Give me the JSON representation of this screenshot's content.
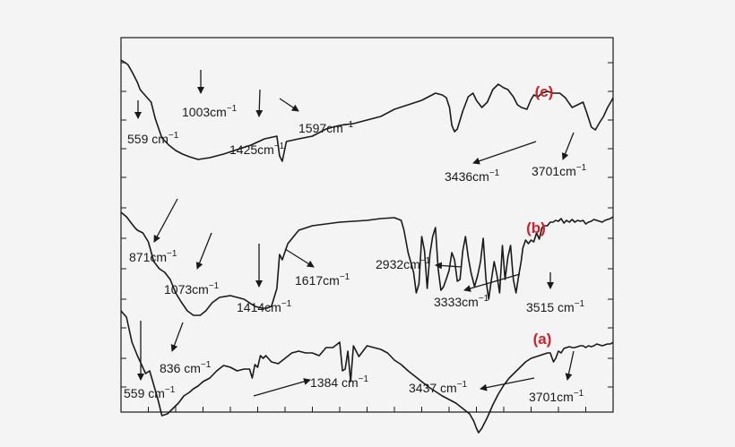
{
  "chart_data": {
    "type": "line",
    "title": "",
    "xlabel": "",
    "ylabel": "",
    "grid": false,
    "x_unit": "cm−1",
    "x_range": [
      400,
      4000
    ],
    "colors": {
      "curve": "#1a1a1a",
      "label": "#d0202a",
      "frame": "#1a1a1a",
      "background": "#f4f4f4"
    },
    "series": [
      {
        "name": "(c)",
        "x": [
          4000,
          3950,
          3920,
          3900,
          3880,
          3860,
          3820,
          3780,
          3750,
          3701,
          3650,
          3600,
          3550,
          3500,
          3436,
          3350,
          3250,
          3150,
          3050,
          2950,
          2860,
          2840,
          2820,
          2790,
          2700,
          2600,
          2500,
          2400,
          2300,
          2200,
          2100,
          2000,
          1900,
          1800,
          1700,
          1650,
          1620,
          1597,
          1580,
          1560,
          1540,
          1500,
          1460,
          1425,
          1400,
          1360,
          1320,
          1280,
          1240,
          1200,
          1170,
          1130,
          1100,
          1070,
          1030,
          1003,
          980,
          950,
          920,
          880,
          840,
          790,
          750,
          700,
          660,
          620,
          590,
          559,
          530,
          500,
          470,
          440,
          410,
          400
        ],
        "y": [
          25,
          30,
          38,
          44,
          50,
          58,
          65,
          72,
          90,
          112,
          120,
          126,
          130,
          133,
          136,
          134,
          130,
          125,
          120,
          113,
          110,
          132,
          138,
          116,
          113,
          110,
          102,
          98,
          96,
          92,
          88,
          80,
          75,
          70,
          62,
          64,
          67,
          78,
          98,
          105,
          102,
          82,
          66,
          62,
          70,
          78,
          72,
          58,
          52,
          56,
          58,
          66,
          75,
          78,
          80,
          70,
          64,
          66,
          62,
          60,
          62,
          62,
          67,
          78,
          75,
          72,
          85,
          100,
          103,
          95,
          88,
          78,
          70,
          67
        ]
      },
      {
        "name": "(b)",
        "x": [
          4000,
          3960,
          3920,
          3900,
          3880,
          3840,
          3800,
          3760,
          3720,
          3680,
          3640,
          3600,
          3560,
          3515,
          3470,
          3420,
          3380,
          3333,
          3280,
          3200,
          3100,
          3020,
          2970,
          2932,
          2900,
          2860,
          2840,
          2820,
          2780,
          2700,
          2600,
          2500,
          2400,
          2300,
          2200,
          2100,
          2000,
          1950,
          1930,
          1900,
          1860,
          1840,
          1820,
          1800,
          1780,
          1760,
          1740,
          1720,
          1700,
          1680,
          1660,
          1640,
          1617,
          1600,
          1580,
          1560,
          1540,
          1520,
          1500,
          1480,
          1460,
          1440,
          1414,
          1390,
          1370,
          1350,
          1330,
          1310,
          1290,
          1270,
          1250,
          1230,
          1210,
          1190,
          1170,
          1150,
          1130,
          1110,
          1090,
          1073,
          1060,
          1040,
          1020,
          1000,
          980,
          960,
          940,
          920,
          900,
          880,
          871,
          860,
          840,
          820,
          800,
          780,
          760,
          740,
          720,
          700,
          680,
          660,
          640,
          620,
          600,
          580,
          560,
          540,
          520,
          500,
          480,
          460,
          440,
          420,
          400
        ],
        "y": [
          195,
          200,
          208,
          212,
          215,
          218,
          228,
          250,
          258,
          262,
          270,
          285,
          295,
          305,
          310,
          310,
          305,
          296,
          290,
          288,
          292,
          300,
          302,
          302,
          300,
          280,
          242,
          248,
          230,
          215,
          210,
          208,
          206,
          205,
          204,
          202,
          201,
          204,
          215,
          240,
          262,
          285,
          275,
          222,
          238,
          280,
          242,
          222,
          212,
          258,
          282,
          278,
          268,
          260,
          240,
          248,
          272,
          270,
          238,
          222,
          245,
          262,
          278,
          265,
          250,
          224,
          270,
          292,
          270,
          250,
          265,
          285,
          232,
          270,
          245,
          232,
          270,
          285,
          265,
          250,
          235,
          226,
          230,
          226,
          228,
          218,
          225,
          212,
          210,
          210,
          208,
          206,
          206,
          204,
          205,
          202,
          207,
          204,
          206,
          203,
          206,
          204,
          205,
          204,
          208,
          206,
          205,
          203,
          204,
          205,
          206,
          204,
          203,
          202,
          200
        ]
      },
      {
        "name": "(a)",
        "x": [
          4000,
          3960,
          3920,
          3880,
          3850,
          3820,
          3790,
          3760,
          3730,
          3701,
          3660,
          3620,
          3580,
          3540,
          3500,
          3470,
          3437,
          3400,
          3350,
          3300,
          3250,
          3200,
          3150,
          3100,
          3060,
          3040,
          3020,
          3000,
          2980,
          2960,
          2940,
          2900,
          2850,
          2800,
          2750,
          2700,
          2650,
          2600,
          2550,
          2500,
          2450,
          2400,
          2380,
          2360,
          2340,
          2320,
          2300,
          2260,
          2200,
          2150,
          2100,
          2050,
          2000,
          1950,
          1900,
          1850,
          1800,
          1750,
          1700,
          1650,
          1600,
          1550,
          1500,
          1450,
          1420,
          1400,
          1384,
          1360,
          1320,
          1280,
          1240,
          1200,
          1160,
          1120,
          1080,
          1040,
          1000,
          960,
          920,
          880,
          860,
          836,
          820,
          800,
          780,
          760,
          740,
          720,
          700,
          680,
          660,
          640,
          620,
          600,
          580,
          559,
          540,
          520,
          500,
          480,
          460,
          440,
          420,
          400
        ],
        "y": [
          305,
          312,
          340,
          355,
          365,
          375,
          372,
          388,
          404,
          422,
          420,
          414,
          408,
          400,
          396,
          392,
          389,
          384,
          380,
          372,
          366,
          368,
          372,
          370,
          370,
          380,
          365,
          368,
          355,
          358,
          355,
          362,
          364,
          358,
          352,
          350,
          352,
          352,
          355,
          346,
          346,
          340,
          372,
          370,
          350,
          384,
          344,
          356,
          344,
          346,
          348,
          352,
          360,
          365,
          372,
          378,
          384,
          390,
          395,
          400,
          404,
          408,
          414,
          420,
          428,
          436,
          441,
          436,
          424,
          410,
          398,
          388,
          380,
          374,
          368,
          362,
          358,
          356,
          354,
          352,
          352,
          362,
          358,
          350,
          352,
          347,
          346,
          345,
          346,
          346,
          345,
          344,
          344,
          346,
          344,
          345,
          344,
          342,
          343,
          344,
          343,
          342,
          342,
          340
        ]
      }
    ],
    "x_ticks": [
      4000,
      3800,
      3600,
      3400,
      3200,
      3000,
      2800,
      2600,
      2400,
      2200,
      2000,
      1800,
      1600,
      1400,
      1200,
      1000,
      800,
      600,
      400
    ],
    "labels": [
      {
        "name": "(c)",
        "text": "(c)"
      },
      {
        "name": "(b)",
        "text": "(b)"
      },
      {
        "name": "(a)",
        "text": "(a)"
      }
    ],
    "annotations": [
      {
        "id": "c1",
        "series": "(c)",
        "peak": 559,
        "text": "559 cm",
        "sup": "−1"
      },
      {
        "id": "c2",
        "series": "(c)",
        "peak": 1003,
        "text": "1003cm",
        "sup": "−1"
      },
      {
        "id": "c3",
        "series": "(c)",
        "peak": 1425,
        "text": "1425cm",
        "sup": "−1"
      },
      {
        "id": "c4",
        "series": "(c)",
        "peak": 1597,
        "text": "1597cm",
        "sup": "−1"
      },
      {
        "id": "c5",
        "series": "(c)",
        "peak": 3436,
        "text": "3436cm",
        "sup": "−1"
      },
      {
        "id": "c6",
        "series": "(c)",
        "peak": 3701,
        "text": "3701cm",
        "sup": "−1"
      },
      {
        "id": "b1",
        "series": "(b)",
        "peak": 871,
        "text": "871cm",
        "sup": "−1"
      },
      {
        "id": "b2",
        "series": "(b)",
        "peak": 1073,
        "text": "1073cm",
        "sup": "−1"
      },
      {
        "id": "b3",
        "series": "(b)",
        "peak": 1414,
        "text": "1414cm",
        "sup": "−1"
      },
      {
        "id": "b4",
        "series": "(b)",
        "peak": 1617,
        "text": "1617cm",
        "sup": "−1"
      },
      {
        "id": "b5",
        "series": "(b)",
        "peak": 2932,
        "text": "2932cm",
        "sup": "−1"
      },
      {
        "id": "b6",
        "series": "(b)",
        "peak": 3333,
        "text": "3333cm",
        "sup": "−1"
      },
      {
        "id": "b7",
        "series": "(b)",
        "peak": 3515,
        "text": "3515 cm",
        "sup": "−1"
      },
      {
        "id": "a1",
        "series": "(a)",
        "peak": 559,
        "text": "559 cm",
        "sup": "−1"
      },
      {
        "id": "a2",
        "series": "(a)",
        "peak": 836,
        "text": "836 cm",
        "sup": "−1"
      },
      {
        "id": "a3",
        "series": "(a)",
        "peak": 1384,
        "text": "1384 cm",
        "sup": "−1"
      },
      {
        "id": "a4",
        "series": "(a)",
        "peak": 3437,
        "text": "3437 cm",
        "sup": "−1"
      },
      {
        "id": "a5",
        "series": "(a)",
        "peak": 3701,
        "text": "3701cm",
        "sup": "−1"
      }
    ]
  }
}
